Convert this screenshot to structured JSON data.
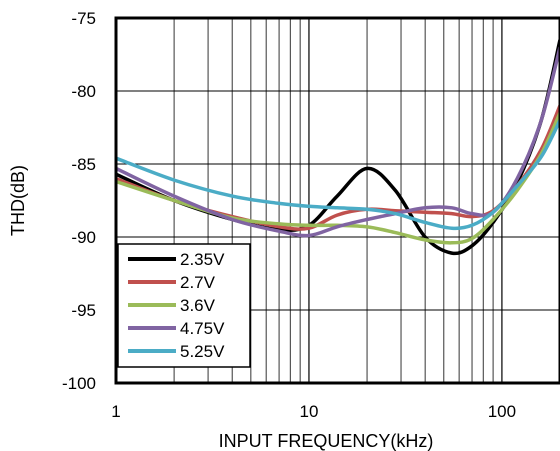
{
  "chart_data": {
    "type": "line",
    "title": "",
    "xlabel": "INPUT FREQUENCY(kHz)",
    "ylabel": "THD(dB)",
    "x_scale": "log",
    "xlim": [
      1,
      200
    ],
    "ylim": [
      -100,
      -75
    ],
    "grid": true,
    "legend_position": "bottom-left",
    "x_ticks": [
      {
        "value": 1,
        "label": "1"
      },
      {
        "value": 10,
        "label": "10"
      },
      {
        "value": 100,
        "label": "100"
      }
    ],
    "y_ticks": [
      {
        "value": -75,
        "label": "-75"
      },
      {
        "value": -80,
        "label": "-80"
      },
      {
        "value": -85,
        "label": "-85"
      },
      {
        "value": -90,
        "label": "-90"
      },
      {
        "value": -95,
        "label": "-95"
      },
      {
        "value": -100,
        "label": "-100"
      }
    ],
    "series": [
      {
        "name": "2.35V",
        "color": "#000000",
        "x": [
          1,
          2,
          4,
          7,
          10,
          14,
          20,
          28,
          40,
          55,
          70,
          90,
          120,
          160,
          200
        ],
        "y": [
          -85.7,
          -87.5,
          -88.8,
          -89.5,
          -89.2,
          -87.2,
          -85.3,
          -86.8,
          -90.0,
          -91.1,
          -90.6,
          -89.0,
          -86.3,
          -82.0,
          -76.5
        ]
      },
      {
        "name": "2.7V",
        "color": "#c0504d",
        "x": [
          1,
          2,
          4,
          7,
          10,
          14,
          20,
          28,
          40,
          55,
          70,
          90,
          120,
          160,
          200
        ],
        "y": [
          -86.0,
          -87.5,
          -88.6,
          -89.3,
          -89.4,
          -88.5,
          -88.1,
          -88.2,
          -88.3,
          -88.4,
          -88.6,
          -88.2,
          -86.5,
          -84.0,
          -81.0
        ]
      },
      {
        "name": "3.6V",
        "color": "#9bbb59",
        "x": [
          1,
          2,
          4,
          7,
          10,
          14,
          20,
          28,
          40,
          55,
          70,
          90,
          120,
          160,
          200
        ],
        "y": [
          -86.2,
          -87.5,
          -88.7,
          -89.1,
          -89.2,
          -89.2,
          -89.3,
          -89.7,
          -90.2,
          -90.4,
          -90.1,
          -88.8,
          -86.8,
          -84.3,
          -81.5
        ]
      },
      {
        "name": "4.75V",
        "color": "#8064a2",
        "x": [
          1,
          2,
          4,
          7,
          10,
          14,
          20,
          28,
          40,
          55,
          70,
          90,
          120,
          160,
          200
        ],
        "y": [
          -85.3,
          -87.2,
          -88.8,
          -89.6,
          -89.9,
          -89.3,
          -88.8,
          -88.4,
          -88.0,
          -88.0,
          -88.4,
          -88.3,
          -86.0,
          -82.0,
          -77.0
        ]
      },
      {
        "name": "5.25V",
        "color": "#4bacc6",
        "x": [
          1,
          2,
          4,
          7,
          10,
          14,
          20,
          28,
          40,
          55,
          70,
          90,
          120,
          160,
          200
        ],
        "y": [
          -84.6,
          -86.1,
          -87.2,
          -87.7,
          -87.9,
          -88.0,
          -88.1,
          -88.4,
          -89.0,
          -89.4,
          -89.2,
          -88.3,
          -86.5,
          -84.5,
          -82.0
        ]
      }
    ]
  }
}
